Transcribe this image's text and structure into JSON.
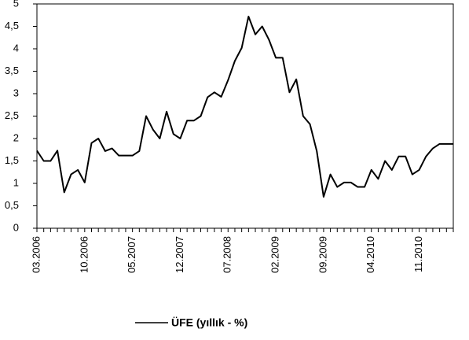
{
  "chart_data": {
    "type": "line",
    "categories": [
      "03.2006",
      null,
      null,
      null,
      null,
      null,
      null,
      "10.2006",
      null,
      null,
      null,
      null,
      null,
      null,
      "05.2007",
      null,
      null,
      null,
      null,
      null,
      null,
      "12.2007",
      null,
      null,
      null,
      null,
      null,
      null,
      "07.2008",
      null,
      null,
      null,
      null,
      null,
      null,
      "02.2009",
      null,
      null,
      null,
      null,
      null,
      null,
      "09.2009",
      null,
      null,
      null,
      null,
      null,
      null,
      "04.2010",
      null,
      null,
      null,
      null,
      null,
      null,
      "11.2010",
      null,
      null,
      null,
      null,
      null
    ],
    "series": [
      {
        "name": "ÜFE (yıllık - %)",
        "color": "#000000",
        "values": [
          1.73,
          1.5,
          1.5,
          1.73,
          0.8,
          1.2,
          1.3,
          1.02,
          1.9,
          2.0,
          1.72,
          1.78,
          1.62,
          1.62,
          1.62,
          1.72,
          2.5,
          2.2,
          2.0,
          2.6,
          2.1,
          2.0,
          2.4,
          2.4,
          2.5,
          2.92,
          3.03,
          2.93,
          3.3,
          3.73,
          4.02,
          4.72,
          4.32,
          4.5,
          4.2,
          3.8,
          3.8,
          3.03,
          3.32,
          2.5,
          2.32,
          1.72,
          0.7,
          1.2,
          0.92,
          1.02,
          1.02,
          0.92,
          0.92,
          1.3,
          1.1,
          1.5,
          1.3,
          1.6,
          1.6,
          1.2,
          1.3,
          1.6,
          1.78,
          1.88,
          1.88,
          1.88
        ]
      }
    ],
    "ylim": [
      0,
      5
    ],
    "yticks": [
      0,
      {
        "value": 0.5,
        "label": "0,5"
      },
      1,
      {
        "value": 1.5,
        "label": "1,5"
      },
      2,
      {
        "value": 2.5,
        "label": "2,5"
      },
      3,
      {
        "value": 3.5,
        "label": "3,5"
      },
      4,
      {
        "value": 4.5,
        "label": "4,5"
      },
      5
    ],
    "legend": "bottom"
  }
}
